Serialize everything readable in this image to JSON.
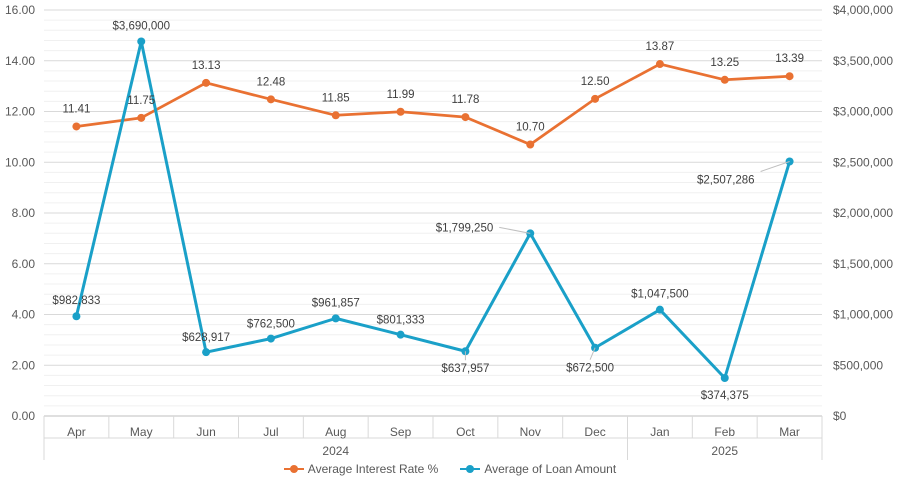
{
  "chart_data": {
    "type": "line",
    "categories": [
      "Apr",
      "May",
      "Jun",
      "Jul",
      "Aug",
      "Sep",
      "Oct",
      "Nov",
      "Dec",
      "Jan",
      "Feb",
      "Mar"
    ],
    "groups": [
      {
        "label": "2024",
        "count": 9
      },
      {
        "label": "2025",
        "count": 3
      }
    ],
    "series": [
      {
        "name": "Average Interest Rate %",
        "axis": "left",
        "color": "#E97132",
        "values": [
          11.41,
          11.75,
          13.13,
          12.48,
          11.85,
          11.99,
          11.78,
          10.7,
          12.5,
          13.87,
          13.25,
          13.39
        ],
        "labels": [
          "11.41",
          "11.75",
          "13.13",
          "12.48",
          "11.85",
          "11.99",
          "11.78",
          "10.70",
          "12.50",
          "13.87",
          "13.25",
          "13.39"
        ]
      },
      {
        "name": "Average of Loan Amount",
        "axis": "right",
        "color": "#1AA0C8",
        "values": [
          982833,
          3690000,
          628917,
          762500,
          961857,
          801333,
          637957,
          1799250,
          672500,
          1047500,
          374375,
          2507286
        ],
        "labels": [
          "$982,833",
          "$3,690,000",
          "$628,917",
          "$762,500",
          "$961,857",
          "$801,333",
          "$637,957",
          "$1,799,250",
          "$672,500",
          "$1,047,500",
          "$374,375",
          "$2,507,286"
        ]
      }
    ],
    "y_left": {
      "min": 0,
      "max": 16,
      "ticks": [
        "0.00",
        "2.00",
        "4.00",
        "6.00",
        "8.00",
        "10.00",
        "12.00",
        "14.00",
        "16.00"
      ]
    },
    "y_right": {
      "min": 0,
      "max": 4000000,
      "ticks": [
        "$0",
        "$500,000",
        "$1,000,000",
        "$1,500,000",
        "$2,000,000",
        "$2,500,000",
        "$3,000,000",
        "$3,500,000",
        "$4,000,000"
      ]
    },
    "grid": true,
    "legend": "bottom"
  }
}
